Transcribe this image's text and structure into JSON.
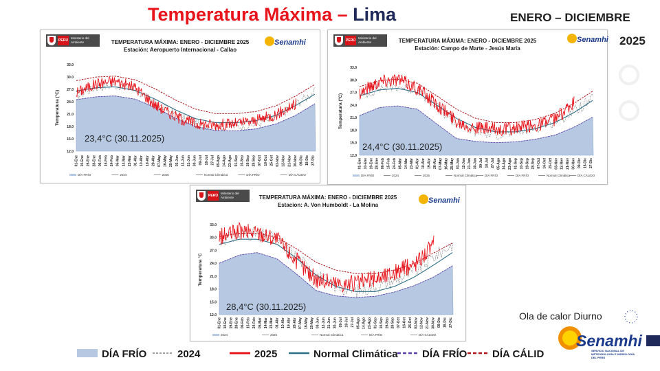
{
  "slide": {
    "title_part1": "Temperatura Máxima",
    "title_dash": " – ",
    "title_part2": "Lima",
    "period": "ENERO – DICIEMBRE",
    "year": "2025",
    "heatwave_label": "Ola de calor Diurno",
    "brand": "Senamhi",
    "brand_sub": "SERVICIO NACIONAL DE METEOROLOGÍA E HIDROLOGÍA DEL PERÚ",
    "logo_country": "PERÚ",
    "logo_ministry": "Ministerio del Ambiente"
  },
  "legend": {
    "items": [
      {
        "key": "cold_fill",
        "label": "DÍA FRÍO",
        "color": "#b7c9e2"
      },
      {
        "key": "y2024",
        "label": "2024",
        "color": "#7f7f7f"
      },
      {
        "key": "y2025",
        "label": "2025",
        "color": "#e8141b"
      },
      {
        "key": "normal",
        "label": "Normal Climática",
        "color": "#2e6f88"
      },
      {
        "key": "cold_dash",
        "label": "DÍA FRÍO",
        "color": "#5b3fa6"
      },
      {
        "key": "warm_dash",
        "label": "DÍA CÁLIDO",
        "color": "#b01318"
      }
    ]
  },
  "panel_months": [
    "01-Ene",
    "10-Ene",
    "19-Ene",
    "28-Ene",
    "06-Feb",
    "15-Feb",
    "24-Feb",
    "05-Mar",
    "14-Mar",
    "23-Mar",
    "01-Abr",
    "10-Abr",
    "19-Abr",
    "28-Abr",
    "07-May",
    "16-May",
    "25-May",
    "03-Jun",
    "12-Jun",
    "21-Jun",
    "30-Jun",
    "09-Jul",
    "18-Jul",
    "27-Jul",
    "05-Ago",
    "14-Ago",
    "23-Ago",
    "01-Sep",
    "10-Sep",
    "19-Sep",
    "28-Sep",
    "07-Oct",
    "16-Oct",
    "25-Oct",
    "03-Nov",
    "12-Nov",
    "21-Nov",
    "30-Nov",
    "09-Dic",
    "18-Dic",
    "27-Dic"
  ],
  "chart_data": [
    {
      "type": "line",
      "title": "TEMPERATURA MÁXIMA:  ENERO - DICIEMBRE 2025",
      "subtitle": "Estación: Aeropuerto Internacional - Callao",
      "ylabel": "Temperatura (°C)",
      "ylim": [
        12.0,
        33.0
      ],
      "yticks": [
        "12.0",
        "15.0",
        "18.0",
        "21.0",
        "24.0",
        "27.0",
        "30.0",
        "33.0"
      ],
      "annotation": "23,4°C (30.11.2025)",
      "legend_entries": [
        "DÍA FRÍO",
        "2024",
        "2025",
        "Normal Climática",
        "DÍA FRÍO",
        "DÍA CÁLIDO"
      ],
      "x_dayofyear": [
        1,
        32,
        60,
        91,
        121,
        152,
        182,
        213,
        244,
        274,
        305,
        335,
        365
      ],
      "series": [
        {
          "name": "DÍA FRÍO",
          "values": [
            24.5,
            25.2,
            25.4,
            24.6,
            22.6,
            20.0,
            18.0,
            17.0,
            16.9,
            17.4,
            18.6,
            20.7,
            23.6
          ]
        },
        {
          "name": "Normal Climática",
          "values": [
            26.6,
            27.4,
            27.6,
            26.7,
            24.6,
            22.0,
            19.9,
            18.9,
            18.9,
            19.4,
            20.7,
            23.1,
            25.9
          ]
        },
        {
          "name": "DÍA CÁLIDO",
          "values": [
            29.1,
            30.0,
            30.2,
            29.3,
            27.1,
            24.4,
            22.2,
            21.1,
            21.1,
            21.6,
            23.0,
            25.4,
            28.3
          ]
        },
        {
          "name": "2024",
          "values": [
            25.5,
            27.5,
            28.0,
            27.0,
            23.5,
            21.0,
            18.5,
            18.0,
            18.0,
            18.5,
            20.0,
            23.5,
            26.5
          ]
        },
        {
          "name": "2025",
          "values": [
            26.2,
            28.4,
            29.0,
            27.4,
            23.2,
            20.4,
            18.6,
            18.4,
            18.7,
            19.4,
            20.9,
            23.4
          ]
        }
      ]
    },
    {
      "type": "line",
      "title": "TEMPERATURA MÁXIMA:  ENERO - DICIEMBRE 2025",
      "subtitle": "Estación:  Campo de Marte - Jesús María",
      "ylabel": "Temperatura (°C)",
      "ylim": [
        12.0,
        33.0
      ],
      "yticks": [
        "12.0",
        "15.0",
        "18.0",
        "21.0",
        "24.0",
        "27.0",
        "30.0",
        "33.0"
      ],
      "annotation": "24,4°C (30.11.2025)",
      "legend_entries": [
        "DÍA FRÍO",
        "2024",
        "2025",
        "Normal Climática",
        "DÍA FRÍO",
        "DÍA FRÍO",
        "Normal Climática",
        "DÍA CÁLIDO"
      ],
      "x_dayofyear": [
        1,
        32,
        60,
        91,
        121,
        152,
        182,
        213,
        244,
        274,
        305,
        335,
        365
      ],
      "series": [
        {
          "name": "DÍA FRÍO",
          "values": [
            21.5,
            23.4,
            23.8,
            23.0,
            19.5,
            16.0,
            15.3,
            15.0,
            15.2,
            15.8,
            16.8,
            18.7,
            21.2
          ]
        },
        {
          "name": "Normal Climática",
          "values": [
            26.2,
            27.6,
            28.0,
            27.0,
            24.0,
            20.8,
            18.6,
            17.6,
            17.6,
            18.3,
            19.8,
            22.2,
            25.2
          ]
        },
        {
          "name": "DÍA CÁLIDO",
          "values": [
            28.4,
            29.8,
            30.2,
            29.2,
            26.2,
            23.0,
            20.8,
            19.8,
            19.8,
            20.5,
            22.0,
            24.4,
            27.4
          ]
        },
        {
          "name": "2024",
          "values": [
            26.0,
            28.0,
            28.5,
            27.5,
            23.5,
            19.5,
            17.5,
            17.0,
            17.5,
            18.5,
            20.0,
            22.5,
            25.5
          ]
        },
        {
          "name": "2025",
          "values": [
            27.0,
            29.7,
            30.2,
            28.0,
            24.2,
            20.2,
            18.6,
            18.1,
            18.4,
            19.1,
            20.6,
            24.4
          ]
        }
      ]
    },
    {
      "type": "line",
      "title": "TEMPERATURA MÁXIMA: ENERO - DICIEMBRE 2025",
      "subtitle": "Estacion: A. Von Humboldt - La Molina",
      "ylabel": "Temperatura °C",
      "ylim": [
        12.0,
        33.0
      ],
      "yticks": [
        "12.0",
        "15.0",
        "18.0",
        "21.0",
        "24.0",
        "27.0",
        "30.0",
        "33.0"
      ],
      "annotation": "28,4°C (30.11.2025)",
      "legend_entries": [
        "2024",
        "2025",
        "Normal Climática",
        "DÍA FRÍO",
        "DÍA CÁLIDO"
      ],
      "x_dayofyear": [
        1,
        32,
        60,
        91,
        121,
        152,
        182,
        213,
        244,
        274,
        305,
        335,
        365
      ],
      "series": [
        {
          "name": "DÍA FRÍO",
          "values": [
            24.0,
            25.9,
            26.5,
            25.0,
            21.5,
            17.6,
            16.4,
            16.0,
            16.3,
            17.3,
            18.8,
            20.8,
            23.5
          ]
        },
        {
          "name": "Normal Climática",
          "values": [
            28.4,
            29.6,
            29.6,
            28.4,
            25.2,
            21.2,
            18.6,
            17.4,
            17.4,
            18.6,
            20.8,
            23.6,
            26.6
          ]
        },
        {
          "name": "DÍA CÁLIDO",
          "values": [
            30.2,
            31.0,
            31.0,
            30.0,
            27.4,
            24.2,
            22.4,
            21.6,
            21.6,
            22.4,
            24.0,
            26.4,
            28.8
          ]
        },
        {
          "name": "2024",
          "values": [
            29.5,
            30.5,
            31.0,
            29.5,
            25.5,
            21.5,
            18.5,
            17.5,
            18.5,
            20.0,
            22.0,
            25.5,
            28.5
          ]
        },
        {
          "name": "2025",
          "values": [
            30.0,
            31.4,
            31.2,
            29.6,
            24.6,
            20.2,
            19.4,
            19.2,
            20.4,
            21.8,
            23.8,
            28.4
          ]
        }
      ]
    }
  ]
}
